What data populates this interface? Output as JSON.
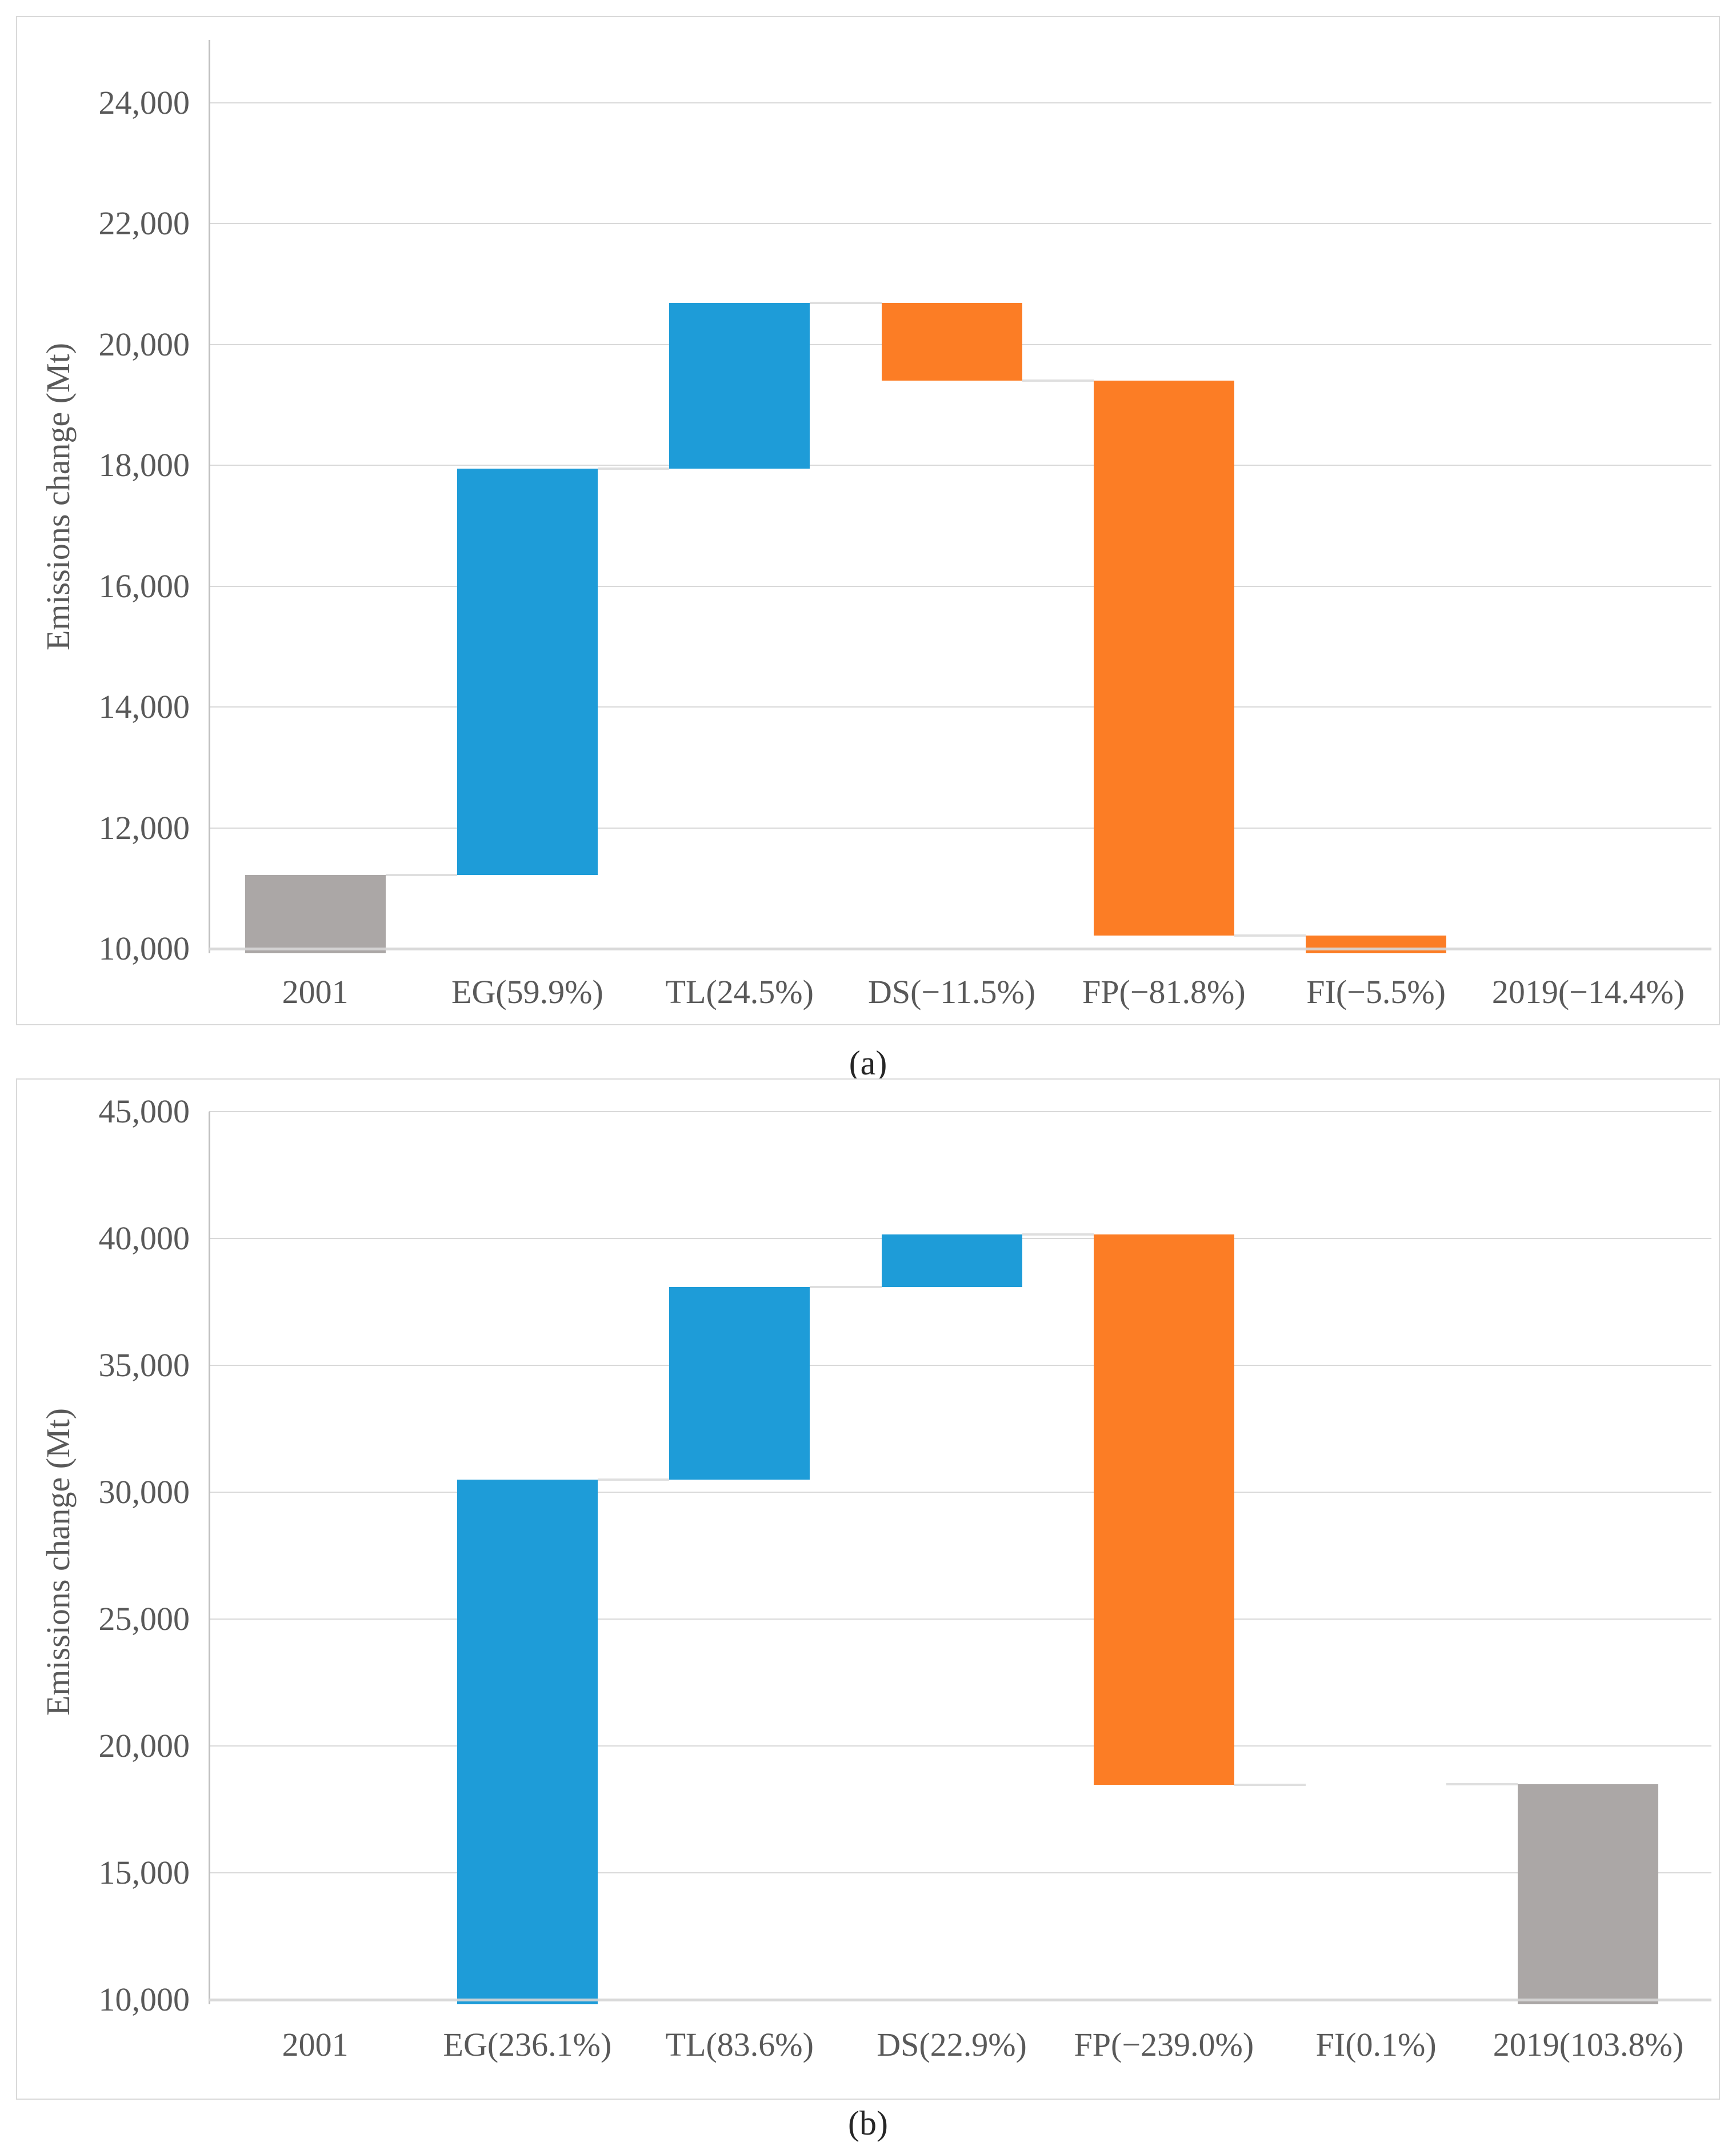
{
  "page": {
    "background": "#ffffff"
  },
  "captions": {
    "a": "(a)",
    "b": "(b)"
  },
  "colors": {
    "increase": "#1e9cd8",
    "decrease": "#fc7d25",
    "total": "#aba7a6",
    "gridline": "#d9d9d9",
    "axis_cross_line": "#d6d6d6",
    "connector": "#dfdfdf",
    "y_axis_line": "#c0c0c0",
    "tick_text": "#595959",
    "caption_text": "#262626",
    "box_border": "#d9d9d9"
  },
  "chart_data": [
    {
      "id": "a",
      "type": "bar",
      "subtype": "waterfall",
      "title": "",
      "caption": "(a)",
      "xlabel": "",
      "ylabel": "Emissions change (Mt)",
      "legend": "none",
      "grid": "horizontal",
      "categories": [
        "2001",
        "EG(59.9%)",
        "TL(24.5%)",
        "DS(−11.5%)",
        "FP(−81.8%)",
        "FI(−5.5%)",
        "2019(−14.4%)"
      ],
      "y_axis": {
        "cross": 10000,
        "ylim": [
          10000,
          25000
        ],
        "major_unit": 2000,
        "ticks": [
          {
            "v": 10000,
            "label": "10,000"
          },
          {
            "v": 12000,
            "label": "12,000"
          },
          {
            "v": 14000,
            "label": "14,000"
          },
          {
            "v": 16000,
            "label": "16,000"
          },
          {
            "v": 18000,
            "label": "18,000"
          },
          {
            "v": 20000,
            "label": "20,000"
          },
          {
            "v": 22000,
            "label": "22,000"
          },
          {
            "v": 24000,
            "label": "24,000"
          }
        ]
      },
      "bars": [
        {
          "category": "2001",
          "role": "total",
          "from": 0,
          "to": 11220
        },
        {
          "category": "EG(59.9%)",
          "role": "increase",
          "from": 11220,
          "to": 17941
        },
        {
          "category": "TL(24.5%)",
          "role": "increase",
          "from": 17941,
          "to": 20690
        },
        {
          "category": "DS(−11.5%)",
          "role": "decrease",
          "from": 20690,
          "to": 19400
        },
        {
          "category": "FP(−81.8%)",
          "role": "decrease",
          "from": 19400,
          "to": 10222
        },
        {
          "category": "FI(−5.5%)",
          "role": "decrease",
          "from": 10222,
          "to": 9605
        },
        {
          "category": "2019(−14.4%)",
          "role": "total",
          "from": 0,
          "to": 9604
        }
      ]
    },
    {
      "id": "b",
      "type": "bar",
      "subtype": "waterfall",
      "title": "",
      "caption": "(b)",
      "xlabel": "",
      "ylabel": "Emissions change (Mt)",
      "legend": "none",
      "grid": "horizontal",
      "categories": [
        "2001",
        "EG(236.1%)",
        "TL(83.6%)",
        "DS(22.9%)",
        "FP(−239.0%)",
        "FI(0.1%)",
        "2019(103.8%)"
      ],
      "y_axis": {
        "cross": 10000,
        "ylim": [
          10000,
          45000
        ],
        "major_unit": 5000,
        "ticks": [
          {
            "v": 10000,
            "label": "10,000"
          },
          {
            "v": 15000,
            "label": "15,000"
          },
          {
            "v": 20000,
            "label": "20,000"
          },
          {
            "v": 25000,
            "label": "25,000"
          },
          {
            "v": 30000,
            "label": "30,000"
          },
          {
            "v": 35000,
            "label": "35,000"
          },
          {
            "v": 40000,
            "label": "40,000"
          },
          {
            "v": 45000,
            "label": "45,000"
          }
        ]
      },
      "bars": [
        {
          "category": "2001",
          "role": "total",
          "from": 0,
          "to": 9073
        },
        {
          "category": "EG(236.1%)",
          "role": "increase",
          "from": 9073,
          "to": 30494
        },
        {
          "category": "TL(83.6%)",
          "role": "increase",
          "from": 30494,
          "to": 38079
        },
        {
          "category": "DS(22.9%)",
          "role": "increase",
          "from": 38079,
          "to": 40157
        },
        {
          "category": "FP(−239.0%)",
          "role": "decrease",
          "from": 40157,
          "to": 18472
        },
        {
          "category": "FI(0.1%)",
          "role": "increase",
          "from": 18472,
          "to": 18481
        },
        {
          "category": "2019(103.8%)",
          "role": "total",
          "from": 0,
          "to": 18481
        }
      ]
    }
  ]
}
